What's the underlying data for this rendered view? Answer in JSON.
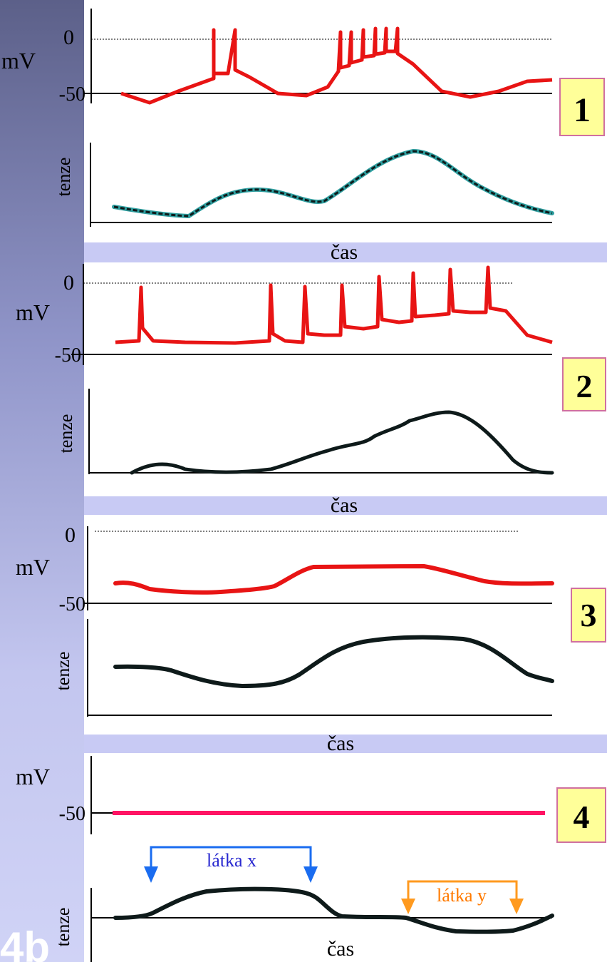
{
  "figure_label": "4b",
  "panels": [
    {
      "number": "1",
      "mv_label": "mV",
      "zero_label": "0",
      "minus50_label": "-50",
      "tension_label": "tenze",
      "time_label": "čas"
    },
    {
      "number": "2",
      "mv_label": "mV",
      "zero_label": "0",
      "minus50_label": "-50",
      "tension_label": "tenze",
      "time_label": "čas"
    },
    {
      "number": "3",
      "mv_label": "mV",
      "zero_label": "0",
      "minus50_label": "-50",
      "tension_label": "tenze",
      "time_label": "čas"
    },
    {
      "number": "4",
      "mv_label": "mV",
      "minus50_label": "-50",
      "tension_label": "tenze",
      "time_label": "čas",
      "substance_x_label": "látka x",
      "substance_y_label": "látka y"
    }
  ],
  "colors": {
    "potential": "#e81414",
    "potential_flat": "#ff1464",
    "tension": "#0e1a1a",
    "tension_highlight": "#29b6b6",
    "separator_band": "#c8caf4",
    "number_box_fill": "#ffff99",
    "number_box_border": "#d070a0",
    "arrow_x": "#1a6cf0",
    "arrow_y": "#ff9a1f",
    "label_x": "#2a2ad0",
    "label_y": "#ff7a00"
  }
}
